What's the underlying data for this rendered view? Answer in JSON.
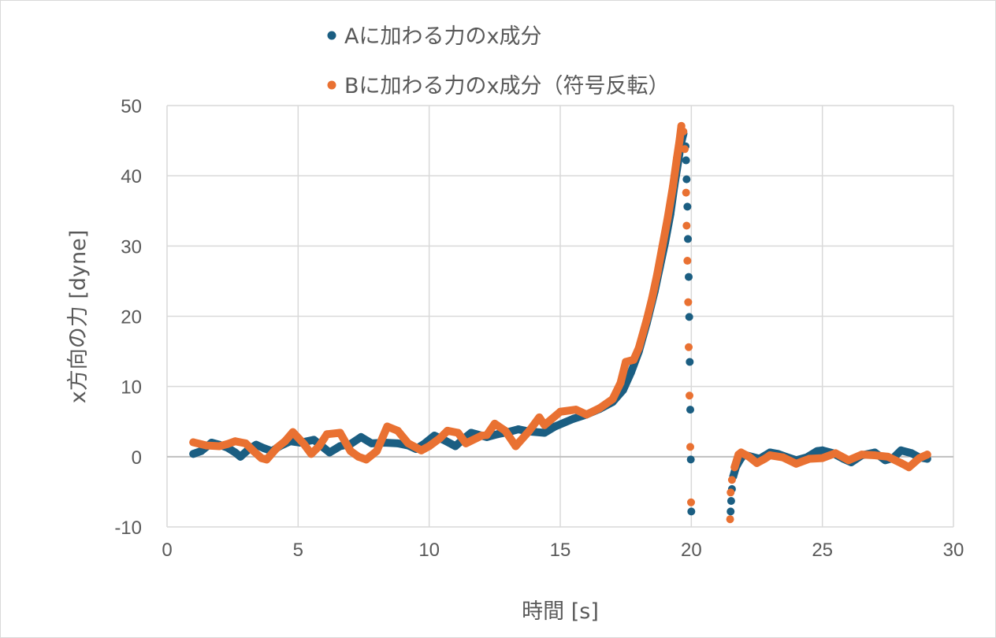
{
  "chart_data": {
    "type": "scatter",
    "xlabel": "時間 [s]",
    "ylabel": "x方向の力 [dyne]",
    "xlim": [
      0,
      30
    ],
    "ylim": [
      -10,
      50
    ],
    "xticks": [
      0,
      5,
      10,
      15,
      20,
      25,
      30
    ],
    "yticks": [
      -10,
      0,
      10,
      20,
      30,
      40,
      50
    ],
    "grid": true,
    "legend_position": "top",
    "series": [
      {
        "name": "Aに加わる力のx成分",
        "color": "#1B5E82",
        "trace_segments": [
          [
            [
              1.0,
              0.4
            ],
            [
              1.3,
              0.8
            ],
            [
              1.7,
              2.0
            ],
            [
              2.0,
              1.7
            ],
            [
              2.3,
              1.3
            ],
            [
              2.6,
              0.6
            ],
            [
              2.8,
              0.0
            ],
            [
              3.1,
              1.0
            ],
            [
              3.4,
              1.7
            ],
            [
              3.7,
              1.2
            ],
            [
              4.0,
              0.8
            ],
            [
              4.3,
              1.5
            ],
            [
              4.7,
              2.2
            ],
            [
              5.1,
              2.0
            ],
            [
              5.6,
              2.4
            ],
            [
              5.9,
              1.5
            ],
            [
              6.2,
              0.6
            ],
            [
              6.6,
              1.5
            ],
            [
              7.0,
              1.8
            ],
            [
              7.4,
              2.8
            ],
            [
              7.8,
              1.9
            ],
            [
              8.3,
              2.0
            ],
            [
              8.8,
              1.9
            ],
            [
              9.2,
              1.6
            ],
            [
              9.5,
              1.1
            ],
            [
              9.8,
              1.8
            ],
            [
              10.2,
              3.0
            ],
            [
              10.6,
              2.3
            ],
            [
              11.0,
              1.5
            ],
            [
              11.3,
              2.5
            ],
            [
              11.6,
              3.4
            ],
            [
              12.2,
              2.8
            ],
            [
              12.6,
              3.2
            ],
            [
              13.0,
              3.5
            ],
            [
              13.4,
              3.9
            ],
            [
              13.8,
              3.6
            ],
            [
              14.4,
              3.4
            ],
            [
              14.8,
              4.3
            ],
            [
              15.5,
              5.4
            ],
            [
              16.0,
              6.0
            ],
            [
              16.5,
              6.8
            ],
            [
              17.0,
              7.8
            ],
            [
              17.4,
              9.5
            ],
            [
              17.7,
              12.0
            ],
            [
              18.0,
              15.0
            ],
            [
              18.3,
              19.0
            ],
            [
              18.6,
              23.5
            ],
            [
              18.8,
              27.0
            ],
            [
              19.0,
              30.5
            ],
            [
              19.2,
              34.5
            ],
            [
              19.35,
              38.5
            ],
            [
              19.5,
              42.0
            ],
            [
              19.6,
              44.5
            ],
            [
              19.7,
              46.0
            ]
          ],
          [
            [
              21.6,
              -2.8
            ],
            [
              21.7,
              -1.5
            ],
            [
              21.85,
              -0.5
            ],
            [
              22.0,
              0.3
            ],
            [
              22.3,
              0.0
            ],
            [
              22.6,
              -0.3
            ],
            [
              23.0,
              0.6
            ],
            [
              23.3,
              0.4
            ],
            [
              23.6,
              0.0
            ],
            [
              24.0,
              -0.5
            ],
            [
              24.4,
              -0.1
            ],
            [
              24.8,
              0.8
            ],
            [
              25.0,
              0.9
            ],
            [
              25.4,
              0.5
            ],
            [
              25.8,
              -0.3
            ],
            [
              26.1,
              -0.8
            ],
            [
              26.5,
              0.2
            ],
            [
              27.0,
              0.6
            ],
            [
              27.4,
              -0.5
            ],
            [
              27.7,
              -0.2
            ],
            [
              28.0,
              0.9
            ],
            [
              28.4,
              0.5
            ],
            [
              28.7,
              -0.1
            ],
            [
              29.0,
              -0.3
            ]
          ]
        ],
        "isolated_points": [
          [
            19.78,
            44.2
          ],
          [
            19.8,
            42.2
          ],
          [
            19.82,
            39.5
          ],
          [
            19.85,
            35.6
          ],
          [
            19.87,
            31.0
          ],
          [
            19.9,
            25.6
          ],
          [
            19.92,
            19.9
          ],
          [
            19.94,
            13.5
          ],
          [
            19.96,
            6.7
          ],
          [
            19.98,
            -0.4
          ],
          [
            20.0,
            -7.8
          ],
          [
            21.5,
            -7.8
          ],
          [
            21.52,
            -6.3
          ],
          [
            21.55,
            -4.6
          ]
        ]
      },
      {
        "name": "Bに加わる力のx成分（符号反転）",
        "color": "#E97132",
        "trace_segments": [
          [
            [
              1.0,
              2.05
            ],
            [
              1.5,
              1.6
            ],
            [
              2.0,
              1.5
            ],
            [
              2.3,
              1.8
            ],
            [
              2.6,
              2.2
            ],
            [
              3.0,
              1.9
            ],
            [
              3.3,
              0.8
            ],
            [
              3.6,
              -0.2
            ],
            [
              3.8,
              -0.4
            ],
            [
              4.2,
              1.3
            ],
            [
              4.5,
              2.2
            ],
            [
              4.8,
              3.5
            ],
            [
              5.2,
              1.9
            ],
            [
              5.5,
              0.4
            ],
            [
              5.8,
              1.5
            ],
            [
              6.1,
              3.2
            ],
            [
              6.6,
              3.4
            ],
            [
              7.0,
              0.8
            ],
            [
              7.3,
              0.0
            ],
            [
              7.6,
              -0.4
            ],
            [
              8.0,
              0.8
            ],
            [
              8.4,
              4.3
            ],
            [
              8.8,
              3.7
            ],
            [
              9.2,
              1.9
            ],
            [
              9.7,
              0.9
            ],
            [
              10.0,
              1.5
            ],
            [
              10.4,
              2.6
            ],
            [
              10.7,
              3.7
            ],
            [
              11.1,
              3.4
            ],
            [
              11.4,
              1.9
            ],
            [
              12.0,
              3.0
            ],
            [
              12.2,
              3.1
            ],
            [
              12.5,
              4.7
            ],
            [
              12.9,
              3.7
            ],
            [
              13.3,
              1.5
            ],
            [
              13.8,
              3.6
            ],
            [
              14.2,
              5.6
            ],
            [
              14.4,
              4.5
            ],
            [
              15.0,
              6.4
            ],
            [
              15.6,
              6.7
            ],
            [
              16.0,
              6.0
            ],
            [
              16.5,
              6.9
            ],
            [
              17.0,
              8.2
            ],
            [
              17.3,
              10.5
            ],
            [
              17.5,
              13.5
            ],
            [
              17.8,
              13.8
            ],
            [
              18.0,
              15.5
            ],
            [
              18.3,
              19.5
            ],
            [
              18.5,
              22.5
            ],
            [
              18.7,
              26.0
            ],
            [
              18.9,
              30.0
            ],
            [
              19.1,
              34.0
            ],
            [
              19.3,
              38.5
            ],
            [
              19.45,
              42.5
            ],
            [
              19.55,
              45.0
            ],
            [
              19.62,
              47.1
            ]
          ],
          [
            [
              21.65,
              -1.5
            ],
            [
              21.8,
              0.3
            ],
            [
              21.9,
              0.6
            ],
            [
              22.2,
              0.0
            ],
            [
              22.5,
              -0.9
            ],
            [
              22.8,
              -0.3
            ],
            [
              23.0,
              0.2
            ],
            [
              23.5,
              -0.1
            ],
            [
              24.0,
              -1.0
            ],
            [
              24.5,
              -0.3
            ],
            [
              25.0,
              -0.2
            ],
            [
              25.5,
              0.5
            ],
            [
              26.0,
              -0.5
            ],
            [
              26.5,
              0.3
            ],
            [
              27.0,
              0.2
            ],
            [
              27.5,
              0.0
            ],
            [
              28.0,
              -0.9
            ],
            [
              28.3,
              -1.5
            ],
            [
              28.7,
              -0.2
            ],
            [
              29.0,
              0.3
            ]
          ]
        ],
        "isolated_points": [
          [
            19.7,
            46.3
          ],
          [
            19.75,
            43.8
          ],
          [
            19.8,
            37.6
          ],
          [
            19.82,
            32.9
          ],
          [
            19.85,
            27.9
          ],
          [
            19.88,
            22.0
          ],
          [
            19.9,
            15.6
          ],
          [
            19.93,
            8.7
          ],
          [
            19.96,
            1.4
          ],
          [
            19.99,
            -6.5
          ],
          [
            21.48,
            -8.9
          ],
          [
            21.5,
            -5.1
          ],
          [
            21.55,
            -3.3
          ]
        ]
      }
    ]
  }
}
